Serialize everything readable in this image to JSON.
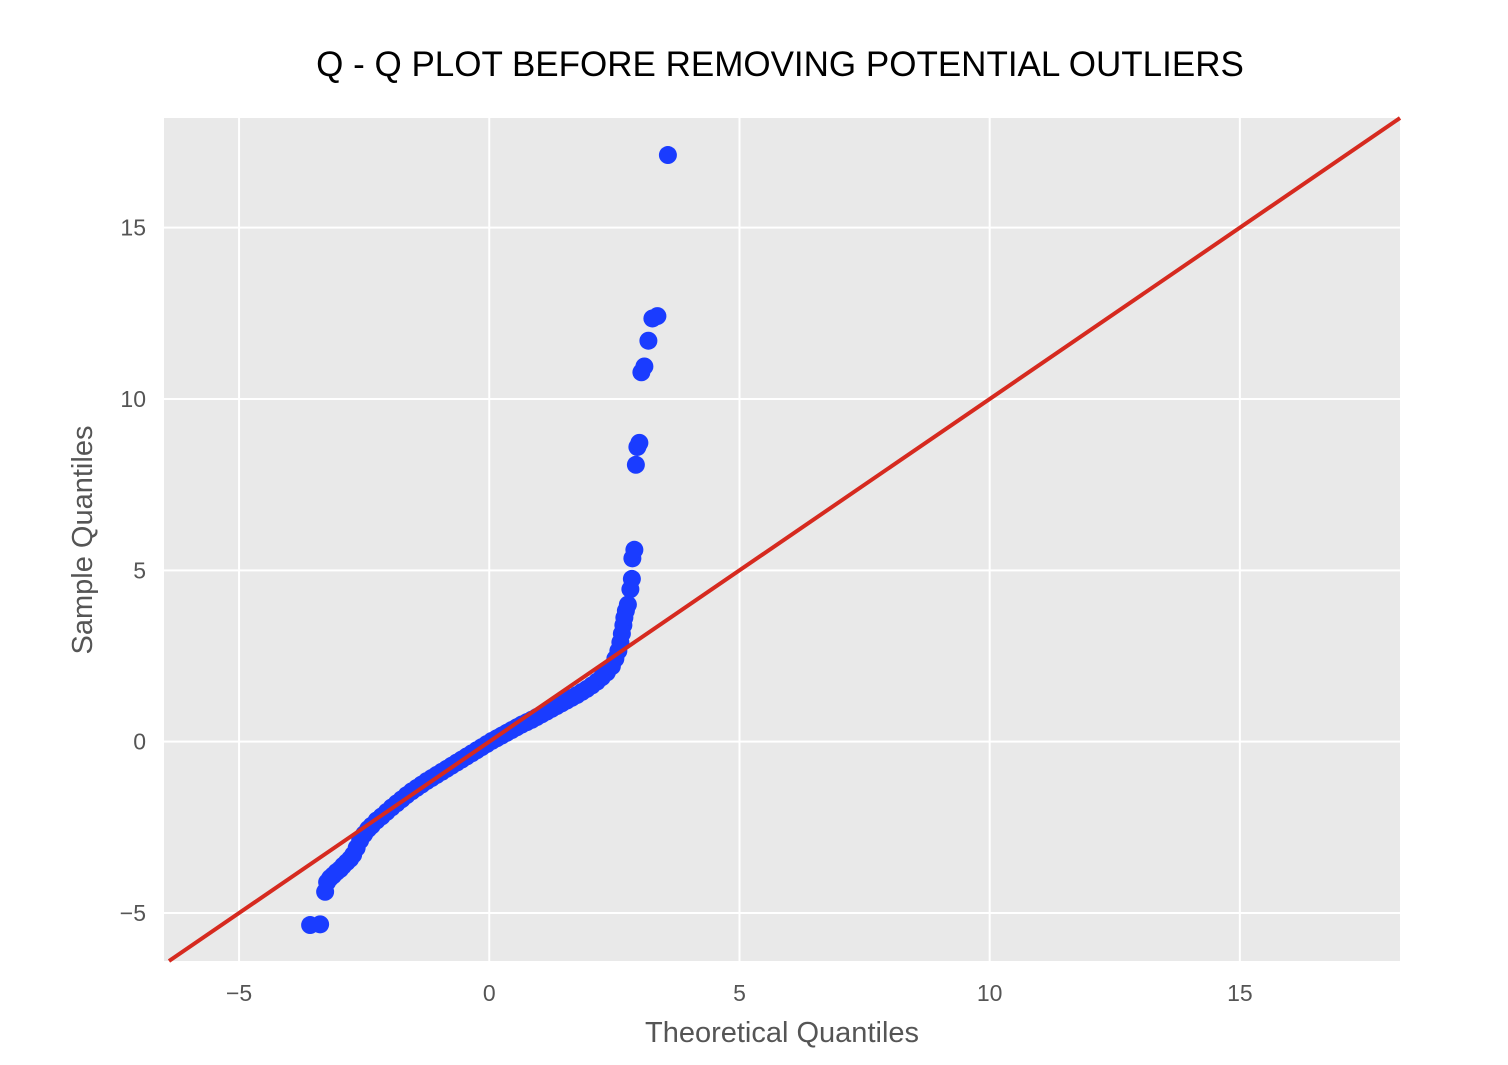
{
  "chart_data": {
    "type": "scatter",
    "title": "Q - Q PLOT BEFORE REMOVING POTENTIAL OUTLIERS",
    "xlabel": "Theoretical Quantiles",
    "ylabel": "Sample Quantiles",
    "xlim": [
      -6.5,
      18.2
    ],
    "ylim": [
      -6.4,
      18.2
    ],
    "xticks": [
      -5,
      0,
      5,
      10,
      15
    ],
    "yticks": [
      -5,
      0,
      5,
      10,
      15
    ],
    "xtick_labels": [
      "−5",
      "0",
      "5",
      "10",
      "15"
    ],
    "ytick_labels": [
      "−5",
      "0",
      "5",
      "10",
      "15"
    ],
    "grid": true,
    "legend": "none",
    "colors": {
      "points": "#1a3cff",
      "reference_line": "#d62a1f",
      "plot_background": "#e9e9e9",
      "grid": "#ffffff"
    },
    "reference_line": {
      "slope": 1,
      "intercept": 0
    },
    "points": [
      [
        -3.58,
        -5.35
      ],
      [
        -3.38,
        -5.33
      ],
      [
        -3.28,
        -4.38
      ],
      [
        -3.24,
        -4.1
      ],
      [
        -3.18,
        -3.98
      ],
      [
        -3.12,
        -3.9
      ],
      [
        -3.05,
        -3.8
      ],
      [
        -2.98,
        -3.72
      ],
      [
        -2.92,
        -3.62
      ],
      [
        -2.85,
        -3.52
      ],
      [
        -2.78,
        -3.42
      ],
      [
        -2.72,
        -3.3
      ],
      [
        -2.65,
        -3.1
      ],
      [
        -2.58,
        -2.88
      ],
      [
        -2.5,
        -2.7
      ],
      [
        -2.42,
        -2.55
      ],
      [
        -2.35,
        -2.45
      ],
      [
        -2.25,
        -2.3
      ],
      [
        -2.15,
        -2.18
      ],
      [
        -2.05,
        -2.05
      ],
      [
        -1.95,
        -1.92
      ],
      [
        -1.85,
        -1.8
      ],
      [
        -1.75,
        -1.68
      ],
      [
        -1.65,
        -1.56
      ],
      [
        -1.55,
        -1.45
      ],
      [
        -1.45,
        -1.35
      ],
      [
        -1.35,
        -1.25
      ],
      [
        -1.25,
        -1.15
      ],
      [
        -1.15,
        -1.06
      ],
      [
        -1.05,
        -0.97
      ],
      [
        -0.95,
        -0.88
      ],
      [
        -0.85,
        -0.79
      ],
      [
        -0.75,
        -0.7
      ],
      [
        -0.65,
        -0.61
      ],
      [
        -0.55,
        -0.52
      ],
      [
        -0.45,
        -0.43
      ],
      [
        -0.35,
        -0.34
      ],
      [
        -0.25,
        -0.25
      ],
      [
        -0.15,
        -0.16
      ],
      [
        -0.05,
        -0.07
      ],
      [
        0.05,
        0.02
      ],
      [
        0.15,
        0.1
      ],
      [
        0.25,
        0.18
      ],
      [
        0.35,
        0.26
      ],
      [
        0.45,
        0.34
      ],
      [
        0.55,
        0.42
      ],
      [
        0.65,
        0.5
      ],
      [
        0.75,
        0.57
      ],
      [
        0.85,
        0.64
      ],
      [
        0.95,
        0.72
      ],
      [
        1.05,
        0.8
      ],
      [
        1.15,
        0.88
      ],
      [
        1.25,
        0.96
      ],
      [
        1.35,
        1.04
      ],
      [
        1.45,
        1.12
      ],
      [
        1.55,
        1.2
      ],
      [
        1.65,
        1.28
      ],
      [
        1.75,
        1.36
      ],
      [
        1.85,
        1.45
      ],
      [
        1.95,
        1.54
      ],
      [
        2.05,
        1.64
      ],
      [
        2.15,
        1.75
      ],
      [
        2.25,
        1.88
      ],
      [
        2.35,
        2.02
      ],
      [
        2.45,
        2.2
      ],
      [
        2.52,
        2.42
      ],
      [
        2.58,
        2.65
      ],
      [
        2.62,
        2.9
      ],
      [
        2.65,
        3.15
      ],
      [
        2.68,
        3.4
      ],
      [
        2.7,
        3.62
      ],
      [
        2.73,
        3.82
      ],
      [
        2.77,
        4.0
      ],
      [
        2.82,
        4.45
      ],
      [
        2.85,
        4.75
      ],
      [
        2.86,
        5.35
      ],
      [
        2.9,
        5.6
      ],
      [
        2.93,
        8.08
      ],
      [
        2.96,
        8.6
      ],
      [
        3.0,
        8.72
      ],
      [
        3.04,
        10.78
      ],
      [
        3.1,
        10.95
      ],
      [
        3.18,
        11.7
      ],
      [
        3.26,
        12.35
      ],
      [
        3.36,
        12.42
      ],
      [
        3.57,
        17.12
      ]
    ]
  }
}
